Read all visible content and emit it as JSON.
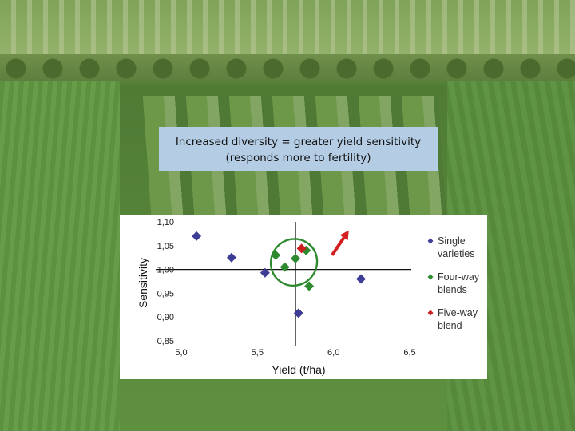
{
  "title_box": {
    "line1": "Increased diversity = greater yield sensitivity",
    "line2": "(responds more to fertility)"
  },
  "colors": {
    "single": "#3d3d96",
    "four_way": "#2e8a2e",
    "five_way": "#cc1f1f",
    "ellipse": "#2e8a2e",
    "arrow": "#d42020",
    "title_bg": "#b4cde4"
  },
  "chart_data": {
    "type": "scatter",
    "title": "",
    "xlabel": "Yield (t/ha)",
    "ylabel": "Sensitivity",
    "xlim": [
      5.0,
      6.5
    ],
    "ylim": [
      0.85,
      1.1
    ],
    "x_ticks": [
      "5,0",
      "5,5",
      "6,0",
      "6,5"
    ],
    "y_ticks": [
      "1,10",
      "1,05",
      "1,00",
      "0,95",
      "0,90",
      "0,85"
    ],
    "x_tick_values": [
      5.0,
      5.5,
      6.0,
      6.5
    ],
    "y_tick_values": [
      1.1,
      1.05,
      1.0,
      0.95,
      0.9,
      0.85
    ],
    "reference_lines": {
      "x": 5.75,
      "y": 1.0
    },
    "legend_position": "right",
    "series": [
      {
        "name": "Single varieties",
        "legend_lines": [
          "Single",
          "varieties"
        ],
        "color_key": "single",
        "points": [
          [
            5.1,
            1.07
          ],
          [
            5.33,
            1.025
          ],
          [
            5.55,
            0.993
          ],
          [
            5.77,
            0.908
          ],
          [
            6.18,
            0.98
          ]
        ]
      },
      {
        "name": "Four-way blends",
        "legend_lines": [
          "Four-way",
          "blends"
        ],
        "color_key": "four_way",
        "points": [
          [
            5.62,
            1.03
          ],
          [
            5.68,
            1.005
          ],
          [
            5.75,
            1.023
          ],
          [
            5.82,
            1.04
          ],
          [
            5.84,
            0.965
          ]
        ]
      },
      {
        "name": "Five-way blend",
        "legend_lines": [
          "Five-way",
          "blend"
        ],
        "color_key": "five_way",
        "points": [
          [
            5.79,
            1.044
          ]
        ]
      }
    ],
    "annotations": {
      "ellipse": {
        "center": [
          5.74,
          1.015
        ],
        "rx_data": 0.155,
        "ry_data": 0.048,
        "rotate_deg": -52
      },
      "arrow": {
        "from": [
          5.99,
          1.03
        ],
        "to": [
          6.1,
          1.082
        ]
      }
    }
  }
}
